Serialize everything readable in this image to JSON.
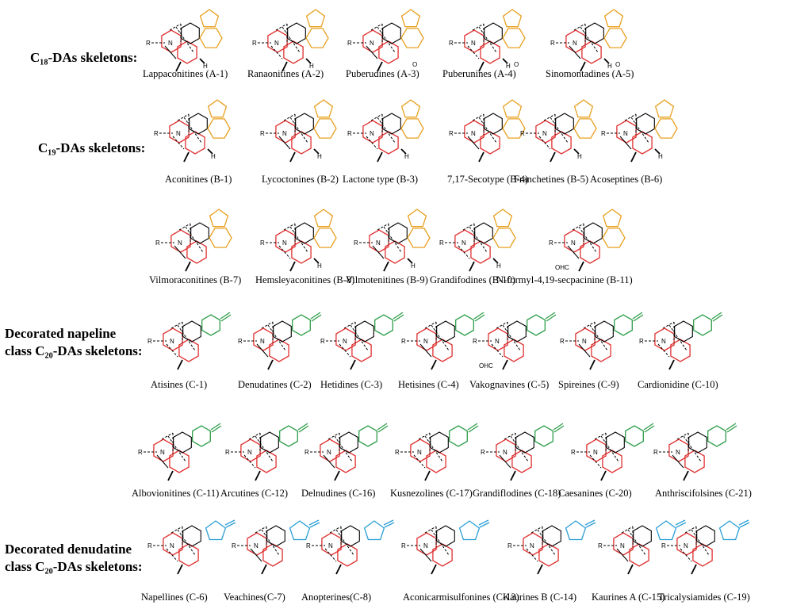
{
  "rows": [
    {
      "title_lines": [
        "C₁₈-DAs skeletons:"
      ],
      "color": "#e8a020",
      "items": [
        "Lappaconitines (A-1)",
        "Ranaonitines (A-2)",
        "Puberudines (A-3)",
        "Puberunines (A-4)",
        "Sinomontadines (A-5)"
      ]
    },
    {
      "title_lines": [
        "C₁₉-DAs skeletons:"
      ],
      "color": "#e8a020",
      "items": [
        "Aconitines (B-1)",
        "Lycoctonines (B-2)",
        "Lactone type (B-3)",
        "7,17-Secotype (B-4)",
        "Franchetines (B-5)",
        "Acoseptines (B-6)"
      ]
    },
    {
      "title_lines": [],
      "color": "#e8a020",
      "items": [
        "Vilmoraconitines (B-7)",
        "Hemsleyaconitines (B-8)",
        "Vilmotenitines (B-9)",
        "Grandifodines (B-10)",
        "N-formyl-4,19-secpacinine (B-11)"
      ]
    },
    {
      "title_lines": [
        "Decorated napeline",
        "class C₂₀-DAs skeletons:"
      ],
      "color": "#2e9e4a",
      "items": [
        "Atisines (C-1)",
        "Denudatines (C-2)",
        "Hetidines (C-3)",
        "Hetisines (C-4)",
        "Vakognavines (C-5)",
        "Spireines (C-9)",
        "Cardionidine (C-10)"
      ]
    },
    {
      "title_lines": [],
      "color": "#2e9e4a",
      "items": [
        "Albovionitines (C-11)",
        "Arcutines (C-12)",
        "Delnudines (C-16)",
        "Kusnezolines (C-17)",
        "Grandiflodines (C-18)",
        "Caesanines (C-20)",
        "Anthriscifolsines (C-21)"
      ]
    },
    {
      "title_lines": [
        "Decorated denudatine",
        "class C₂₀-DAs skeletons:"
      ],
      "color": "#2a9fd6",
      "items": [
        "Napellines (C-6)",
        "Veachines(C-7)",
        "Anopterines(C-8)",
        "Aconicarmisulfonines (C-13)",
        "Kaurines B (C-14)",
        "Kaurines A (C-15)",
        "Tricalysiamides (C-19)"
      ]
    }
  ],
  "ring_color_core": "#e03030",
  "atom_labels": {
    "N": "N",
    "R": "R",
    "H": "H",
    "O": "O",
    "OHC": "OHC"
  }
}
